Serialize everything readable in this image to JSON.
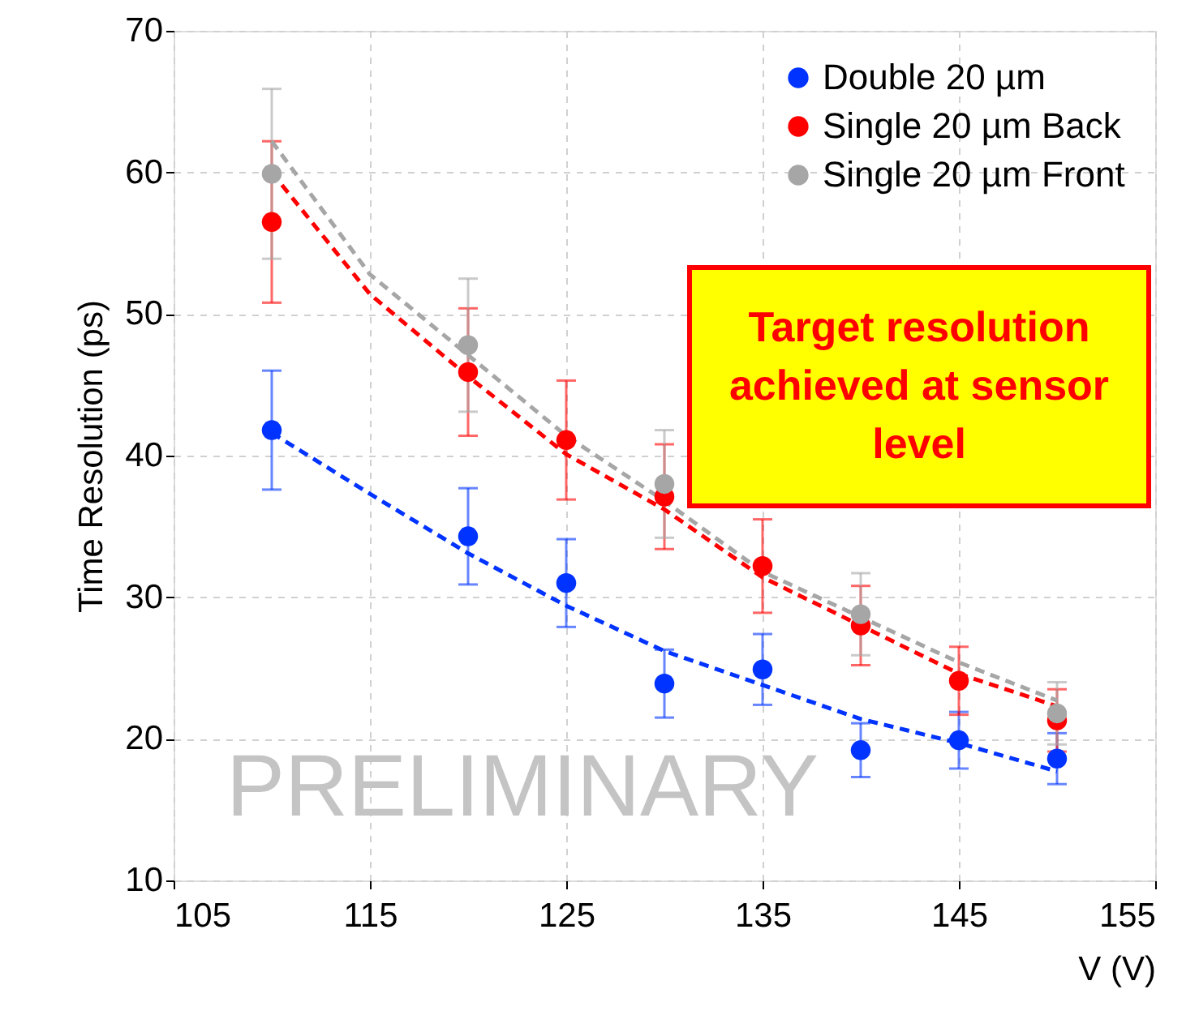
{
  "chart_data": {
    "type": "scatter",
    "xlabel": "V (V)",
    "ylabel": "Time Resolution (ps)",
    "x": [
      110,
      120,
      125,
      130,
      135,
      140,
      145,
      150
    ],
    "series": [
      {
        "name": "Double 20 µm",
        "color": "#0033ff",
        "values": [
          41.8,
          34.3,
          31.0,
          23.9,
          24.9,
          19.2,
          19.9,
          18.6
        ],
        "errors": [
          4.2,
          3.4,
          3.1,
          2.4,
          2.5,
          1.9,
          2.0,
          1.8
        ]
      },
      {
        "name": "Single 20 µm Back",
        "color": "#ff0000",
        "values": [
          56.5,
          45.9,
          41.1,
          37.1,
          32.2,
          28.0,
          24.1,
          21.3
        ],
        "errors": [
          5.7,
          4.5,
          4.2,
          3.7,
          3.3,
          2.8,
          2.4,
          2.2
        ]
      },
      {
        "name": "Single 20 µm Front",
        "color": "#a6a6a6",
        "values": [
          59.9,
          47.8,
          null,
          38.0,
          null,
          28.8,
          null,
          21.8
        ],
        "errors": [
          6.0,
          4.7,
          null,
          3.8,
          null,
          2.9,
          null,
          2.2
        ]
      },
      {
        "type": "line",
        "color": "#0033ff",
        "line_style": "dashed",
        "marker": "none",
        "x": [
          110,
          115,
          120,
          125,
          130,
          135,
          140,
          145,
          150
        ],
        "values": [
          41.6,
          37.3,
          33.1,
          29.4,
          26.2,
          23.8,
          21.4,
          19.7,
          17.7
        ]
      },
      {
        "type": "line",
        "color": "#ff0000",
        "line_style": "dashed",
        "marker": "none",
        "x": [
          110,
          115,
          120,
          125,
          130,
          135,
          140,
          145,
          150
        ],
        "values": [
          60.0,
          51.4,
          45.6,
          40.1,
          36.2,
          31.4,
          28.0,
          24.6,
          22.3
        ]
      },
      {
        "type": "line",
        "color": "#a6a6a6",
        "line_style": "dashed",
        "marker": "none",
        "x": [
          110,
          115,
          120,
          125,
          130,
          135,
          140,
          145,
          150
        ],
        "values": [
          62.2,
          52.8,
          47.1,
          41.4,
          36.8,
          31.8,
          28.6,
          25.4,
          22.7
        ]
      }
    ],
    "xlim": [
      105,
      155
    ],
    "xticks": [
      105,
      115,
      125,
      135,
      145,
      155
    ],
    "ylim": [
      10,
      70
    ],
    "yticks": [
      10,
      20,
      30,
      40,
      50,
      60,
      70
    ],
    "grid": true,
    "legend": "top right",
    "marker": "circle",
    "annotations": [
      "Target resolution achieved at sensor level",
      "PRELIMINARY"
    ]
  }
}
